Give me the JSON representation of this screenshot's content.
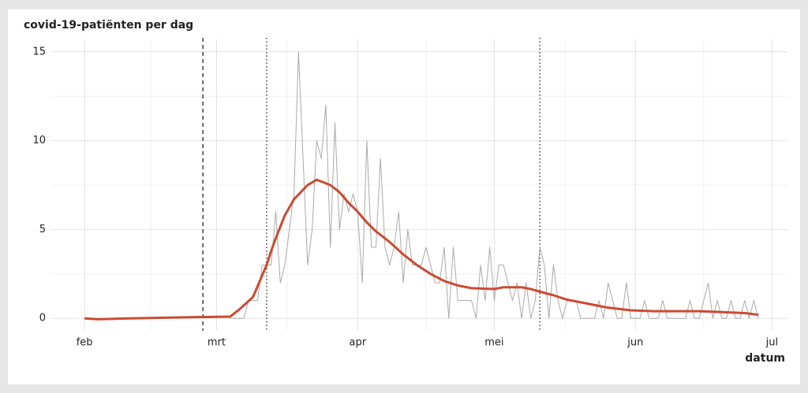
{
  "chart_data": {
    "type": "line",
    "title": "covid-19-patiënten per dag",
    "xlabel": "datum",
    "xlim": [
      -7.3,
      154.4
    ],
    "ylim": [
      -0.7,
      15.7
    ],
    "xticks": [
      {
        "value": 0,
        "label": "feb"
      },
      {
        "value": 29,
        "label": "mrt"
      },
      {
        "value": 60,
        "label": "apr"
      },
      {
        "value": 90,
        "label": "mei"
      },
      {
        "value": 121,
        "label": "jun"
      },
      {
        "value": 151,
        "label": "jul"
      }
    ],
    "yticks": [
      0,
      5,
      10,
      15
    ],
    "xminorticks": [
      14.5,
      44.5,
      75,
      105.5,
      136
    ],
    "yminorticks": [
      2.5,
      7.5,
      12.5
    ],
    "grid": true,
    "vlines": [
      {
        "value": 26,
        "style": "dashed"
      },
      {
        "value": 40,
        "style": "dotted"
      },
      {
        "value": 100,
        "style": "dotted"
      }
    ],
    "series": [
      {
        "color": "#aaaaaa",
        "width": 1,
        "x": [
          32,
          33,
          34,
          35,
          36,
          37,
          38,
          39,
          40,
          41,
          42,
          43,
          44,
          45,
          46,
          47,
          48,
          49,
          50,
          51,
          52,
          53,
          54,
          55,
          56,
          57,
          58,
          59,
          60,
          61,
          62,
          63,
          64,
          65,
          66,
          67,
          68,
          69,
          70,
          71,
          72,
          73,
          74,
          75,
          76,
          77,
          78,
          79,
          80,
          81,
          82,
          83,
          84,
          85,
          86,
          87,
          88,
          89,
          90,
          91,
          92,
          93,
          94,
          95,
          96,
          97,
          98,
          99,
          100,
          101,
          102,
          103,
          104,
          105,
          106,
          107,
          108,
          109,
          110,
          111,
          112,
          113,
          114,
          115,
          116,
          117,
          118,
          119,
          120,
          121,
          122,
          123,
          124,
          125,
          126,
          127,
          128,
          129,
          130,
          131,
          132,
          133,
          134,
          135,
          136,
          137,
          138,
          139,
          140,
          141,
          142,
          143,
          144,
          145,
          146,
          147,
          148
        ],
        "values": [
          0,
          0,
          0,
          0,
          1,
          1,
          1,
          3,
          3,
          3,
          6,
          2,
          3,
          5,
          7,
          15,
          9,
          3,
          5,
          10,
          9,
          12,
          4,
          11,
          5,
          7,
          6,
          7,
          6,
          2,
          10,
          4,
          4,
          9,
          4,
          3,
          4,
          6,
          2,
          5,
          3,
          3,
          3,
          4,
          3,
          2,
          2,
          4,
          0,
          4,
          1,
          1,
          1,
          1,
          0,
          3,
          1,
          4,
          1,
          3,
          3,
          2,
          1,
          2,
          0,
          2,
          0,
          1,
          4,
          3,
          0,
          3,
          1,
          0,
          1,
          1,
          1,
          0,
          0,
          0,
          0,
          1,
          0,
          2,
          1,
          0,
          0,
          2,
          0,
          0,
          0,
          1,
          0,
          0,
          0,
          1,
          0,
          0,
          0,
          0,
          0,
          1,
          0,
          0,
          1,
          2,
          0,
          1,
          0,
          0,
          1,
          0,
          0,
          1,
          0,
          1,
          0
        ]
      },
      {
        "color": "#cc4a32",
        "width": 3,
        "x": [
          0,
          3,
          10,
          20,
          32,
          34,
          37,
          38,
          40,
          41,
          42,
          44,
          46,
          49,
          51,
          54,
          56,
          58,
          60,
          62,
          64,
          67,
          70,
          73,
          76,
          79,
          82,
          85,
          90,
          92,
          96,
          98,
          100,
          103,
          106,
          110,
          115,
          120,
          125,
          135,
          140,
          145,
          148
        ],
        "values": [
          0,
          -0.05,
          0,
          0.05,
          0.1,
          0.5,
          1.2,
          1.8,
          3.0,
          3.8,
          4.5,
          5.8,
          6.7,
          7.5,
          7.8,
          7.5,
          7.1,
          6.5,
          6.0,
          5.4,
          4.9,
          4.3,
          3.6,
          3.0,
          2.5,
          2.1,
          1.85,
          1.7,
          1.65,
          1.75,
          1.75,
          1.65,
          1.5,
          1.3,
          1.05,
          0.85,
          0.6,
          0.45,
          0.4,
          0.4,
          0.35,
          0.3,
          0.2
        ]
      }
    ]
  }
}
